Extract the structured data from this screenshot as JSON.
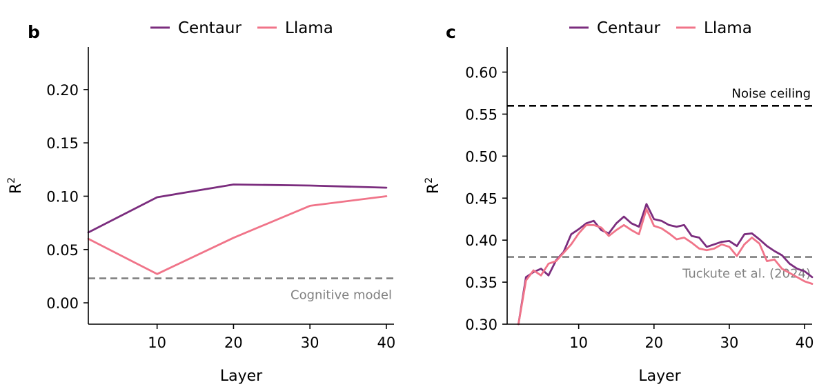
{
  "chart_data": [
    {
      "panel": "b",
      "type": "line",
      "xlabel": "Layer",
      "ylabel": "R",
      "ylabel_sup": "2",
      "xlim": [
        1,
        41
      ],
      "ylim": [
        -0.02,
        0.24
      ],
      "xticks": [
        10,
        20,
        30,
        40
      ],
      "yticks": [
        0.0,
        0.05,
        0.1,
        0.15,
        0.2
      ],
      "ytick_labels": [
        "0.00",
        "0.05",
        "0.10",
        "0.15",
        "0.20"
      ],
      "legend": {
        "position": "top-center"
      },
      "series": [
        {
          "name": "Centaur",
          "color": "#7b2d7e",
          "x": [
            1,
            10,
            20,
            30,
            40
          ],
          "y": [
            0.066,
            0.099,
            0.111,
            0.11,
            0.108
          ]
        },
        {
          "name": "Llama",
          "color": "#f07489",
          "x": [
            1,
            10,
            20,
            30,
            40
          ],
          "y": [
            0.06,
            0.027,
            0.061,
            0.091,
            0.1
          ]
        }
      ],
      "reference_lines": [
        {
          "label": "Cognitive model",
          "y": 0.023,
          "color": "#808080",
          "label_color": "#808080"
        }
      ]
    },
    {
      "panel": "c",
      "type": "line",
      "xlabel": "Layer",
      "ylabel": "R",
      "ylabel_sup": "2",
      "xlim": [
        0.5,
        41
      ],
      "ylim": [
        0.3,
        0.63
      ],
      "xticks": [
        10,
        20,
        30,
        40
      ],
      "yticks": [
        0.3,
        0.35,
        0.4,
        0.45,
        0.5,
        0.55,
        0.6
      ],
      "ytick_labels": [
        "0.30",
        "0.35",
        "0.40",
        "0.45",
        "0.50",
        "0.55",
        "0.60"
      ],
      "legend": {
        "position": "top-center"
      },
      "series": [
        {
          "name": "Centaur",
          "color": "#7b2d7e",
          "x": [
            2,
            3,
            4,
            5,
            6,
            7,
            8,
            9,
            10,
            11,
            12,
            13,
            14,
            15,
            16,
            17,
            18,
            19,
            20,
            21,
            22,
            23,
            24,
            25,
            26,
            27,
            28,
            29,
            30,
            31,
            32,
            33,
            34,
            35,
            36,
            37,
            38,
            39,
            40,
            41
          ],
          "y": [
            0.3,
            0.356,
            0.362,
            0.366,
            0.358,
            0.376,
            0.386,
            0.407,
            0.413,
            0.42,
            0.423,
            0.412,
            0.408,
            0.42,
            0.428,
            0.42,
            0.416,
            0.443,
            0.425,
            0.423,
            0.418,
            0.416,
            0.418,
            0.405,
            0.403,
            0.392,
            0.395,
            0.398,
            0.399,
            0.393,
            0.407,
            0.408,
            0.401,
            0.393,
            0.387,
            0.382,
            0.372,
            0.366,
            0.363,
            0.356
          ]
        },
        {
          "name": "Llama",
          "color": "#f07489",
          "x": [
            2,
            3,
            4,
            5,
            6,
            7,
            8,
            9,
            10,
            11,
            12,
            13,
            14,
            15,
            16,
            17,
            18,
            19,
            20,
            21,
            22,
            23,
            24,
            25,
            26,
            27,
            28,
            29,
            30,
            31,
            32,
            33,
            34,
            35,
            36,
            37,
            38,
            39,
            40,
            41
          ],
          "y": [
            0.3,
            0.352,
            0.364,
            0.358,
            0.372,
            0.375,
            0.385,
            0.395,
            0.408,
            0.418,
            0.418,
            0.415,
            0.405,
            0.412,
            0.418,
            0.412,
            0.407,
            0.437,
            0.417,
            0.414,
            0.408,
            0.401,
            0.403,
            0.397,
            0.39,
            0.388,
            0.39,
            0.395,
            0.392,
            0.381,
            0.395,
            0.403,
            0.396,
            0.375,
            0.377,
            0.366,
            0.361,
            0.356,
            0.351,
            0.348
          ]
        }
      ],
      "reference_lines": [
        {
          "label": "Noise ceiling",
          "y": 0.56,
          "color": "#000000",
          "label_color": "#000000"
        },
        {
          "label": "Tuckute et al. (2024)",
          "y": 0.38,
          "color": "#808080",
          "label_color": "#808080"
        }
      ]
    }
  ]
}
